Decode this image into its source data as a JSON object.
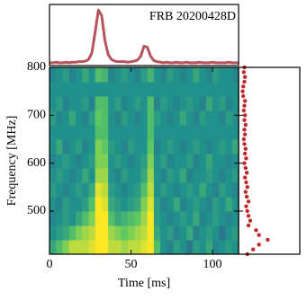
{
  "chart_data": [
    {
      "type": "heatmap",
      "x_label": "Time [ms]",
      "y_label": "Frequency [MHz]",
      "xlim": [
        0,
        116
      ],
      "ylim": [
        410,
        800
      ],
      "xticks": [
        0,
        50,
        100
      ],
      "yticks": [
        500,
        600,
        700,
        800
      ],
      "colormap": "viridis",
      "zlim": [
        0,
        1
      ],
      "z": [
        [
          0.6,
          0.7,
          0.8,
          0.9,
          0.9,
          0.9,
          0.95,
          1,
          1,
          0.9,
          0.9,
          0.85,
          0.9,
          0.9,
          0.95,
          1,
          0.7,
          0.5,
          0.45,
          0.55,
          0.5,
          0.4,
          0.55,
          0.5,
          0.6,
          0.45,
          0.5,
          0.55,
          0.5
        ],
        [
          0.5,
          0.55,
          0.6,
          0.7,
          0.8,
          0.85,
          0.9,
          1,
          1,
          0.85,
          0.8,
          0.75,
          0.8,
          0.85,
          0.9,
          1,
          0.6,
          0.5,
          0.55,
          0.45,
          0.5,
          0.6,
          0.45,
          0.5,
          0.55,
          0.5,
          0.4,
          0.5,
          0.55
        ],
        [
          0.45,
          0.5,
          0.55,
          0.5,
          0.6,
          0.7,
          0.8,
          1,
          1,
          0.7,
          0.6,
          0.65,
          0.7,
          0.75,
          0.85,
          1,
          0.55,
          0.5,
          0.45,
          0.5,
          0.55,
          0.5,
          0.6,
          0.45,
          0.5,
          0.55,
          0.5,
          0.45,
          0.5
        ],
        [
          0.5,
          0.45,
          0.55,
          0.5,
          0.5,
          0.55,
          0.7,
          1,
          0.95,
          0.6,
          0.55,
          0.5,
          0.55,
          0.6,
          0.8,
          0.95,
          0.55,
          0.45,
          0.5,
          0.6,
          0.45,
          0.5,
          0.55,
          0.5,
          0.45,
          0.55,
          0.5,
          0.6,
          0.5
        ],
        [
          0.55,
          0.5,
          0.45,
          0.5,
          0.55,
          0.5,
          0.6,
          0.95,
          0.9,
          0.55,
          0.5,
          0.45,
          0.5,
          0.55,
          0.7,
          0.9,
          0.5,
          0.55,
          0.5,
          0.45,
          0.5,
          0.55,
          0.5,
          0.6,
          0.5,
          0.45,
          0.55,
          0.5,
          0.45
        ],
        [
          0.5,
          0.55,
          0.5,
          0.45,
          0.5,
          0.6,
          0.5,
          0.85,
          0.85,
          0.5,
          0.45,
          0.55,
          0.5,
          0.5,
          0.6,
          0.85,
          0.5,
          0.45,
          0.55,
          0.5,
          0.6,
          0.45,
          0.5,
          0.5,
          0.55,
          0.5,
          0.45,
          0.5,
          0.55
        ],
        [
          0.45,
          0.5,
          0.55,
          0.5,
          0.45,
          0.5,
          0.55,
          0.8,
          0.8,
          0.5,
          0.55,
          0.5,
          0.45,
          0.5,
          0.55,
          0.8,
          0.5,
          0.55,
          0.45,
          0.5,
          0.5,
          0.55,
          0.45,
          0.5,
          0.6,
          0.5,
          0.5,
          0.45,
          0.5
        ],
        [
          0.5,
          0.6,
          0.45,
          0.5,
          0.55,
          0.45,
          0.5,
          0.8,
          0.75,
          0.55,
          0.5,
          0.45,
          0.55,
          0.5,
          0.5,
          0.75,
          0.45,
          0.5,
          0.55,
          0.5,
          0.45,
          0.5,
          0.55,
          0.5,
          0.45,
          0.5,
          0.55,
          0.5,
          0.6
        ],
        [
          0.5,
          0.5,
          0.5,
          0.5,
          0.5,
          0.5,
          0.5,
          0.7,
          0.7,
          0.5,
          0.5,
          0.5,
          0.5,
          0.5,
          0.5,
          0.7,
          0.5,
          0.5,
          0.5,
          0.5,
          0.5,
          0.5,
          0.5,
          0.5,
          0.5,
          0.5,
          0.5,
          0.5,
          0.5
        ],
        [
          0.55,
          0.45,
          0.5,
          0.6,
          0.5,
          0.45,
          0.55,
          0.75,
          0.7,
          0.5,
          0.45,
          0.55,
          0.5,
          0.45,
          0.5,
          0.7,
          0.55,
          0.5,
          0.45,
          0.5,
          0.6,
          0.5,
          0.45,
          0.55,
          0.5,
          0.5,
          0.45,
          0.55,
          0.5
        ],
        [
          0.5,
          0.55,
          0.45,
          0.5,
          0.5,
          0.55,
          0.45,
          0.7,
          0.7,
          0.5,
          0.55,
          0.45,
          0.5,
          0.55,
          0.5,
          0.7,
          0.45,
          0.55,
          0.5,
          0.45,
          0.5,
          0.55,
          0.5,
          0.45,
          0.6,
          0.5,
          0.55,
          0.45,
          0.5
        ],
        [
          0.5,
          0.5,
          0.5,
          0.5,
          0.5,
          0.5,
          0.5,
          0.5,
          0.5,
          0.5,
          0.5,
          0.5,
          0.5,
          0.5,
          0.5,
          0.5,
          0.5,
          0.5,
          0.5,
          0.5,
          0.5,
          0.5,
          0.5,
          0.5,
          0.5,
          0.5,
          0.5,
          0.5,
          0.5
        ],
        [
          0.45,
          0.5,
          0.55,
          0.45,
          0.5,
          0.6,
          0.5,
          0.7,
          0.65,
          0.45,
          0.5,
          0.55,
          0.5,
          0.45,
          0.55,
          0.65,
          0.5,
          0.45,
          0.55,
          0.5,
          0.45,
          0.5,
          0.6,
          0.5,
          0.45,
          0.55,
          0.5,
          0.5,
          0.45
        ]
      ]
    },
    {
      "type": "line",
      "title": "FRB 20200428D",
      "color": "#b5545c",
      "xlim": [
        0,
        116
      ],
      "ylim": [
        -0.05,
        1.05
      ],
      "x": [
        0,
        2,
        4,
        6,
        8,
        10,
        12,
        14,
        16,
        18,
        20,
        22,
        24,
        26,
        28,
        30,
        32,
        34,
        36,
        38,
        40,
        42,
        44,
        46,
        48,
        50,
        52,
        54,
        56,
        58,
        60,
        62,
        64,
        66,
        68,
        70,
        72,
        74,
        76,
        78,
        80,
        82,
        84,
        86,
        88,
        90,
        92,
        94,
        96,
        98,
        100,
        102,
        104,
        106,
        108,
        110,
        112,
        114,
        116
      ],
      "values": [
        0,
        0,
        0.01,
        0,
        0,
        0.01,
        0,
        0.01,
        0.01,
        0.02,
        0.02,
        0.03,
        0.06,
        0.18,
        0.55,
        0.95,
        0.85,
        0.4,
        0.15,
        0.06,
        0.03,
        0.02,
        0.02,
        0.02,
        0.01,
        0.02,
        0.03,
        0.05,
        0.12,
        0.3,
        0.28,
        0.12,
        0.04,
        0.02,
        0.01,
        0,
        0.01,
        0,
        0,
        0.01,
        0,
        0,
        0.01,
        0,
        0,
        0,
        0.01,
        0,
        0,
        0,
        0.01,
        0,
        0,
        0,
        0,
        0.01,
        0,
        0,
        0
      ]
    },
    {
      "type": "scatter",
      "color": "#c0282d",
      "xlim": [
        -0.05,
        1
      ],
      "ylim": [
        410,
        800
      ],
      "y": [
        410,
        420,
        430,
        440,
        450,
        460,
        470,
        480,
        490,
        500,
        510,
        520,
        530,
        540,
        550,
        560,
        570,
        580,
        590,
        600,
        610,
        620,
        630,
        640,
        650,
        660,
        670,
        680,
        690,
        700,
        710,
        720,
        730,
        740,
        750,
        760,
        770,
        780,
        790,
        800
      ],
      "x": [
        0.1,
        0.2,
        0.3,
        0.45,
        0.3,
        0.25,
        0.12,
        0.15,
        0.12,
        0.1,
        0.08,
        0.12,
        0.09,
        0.07,
        0.1,
        0.08,
        0.06,
        0.09,
        0.07,
        0.05,
        0.08,
        0.06,
        0.07,
        0.05,
        0.04,
        0.06,
        0.05,
        0.07,
        0.05,
        0.06,
        0.04,
        0.05,
        0.06,
        0.03,
        0.02,
        0.03,
        0.05,
        0.06,
        0.04,
        0.05
      ]
    }
  ]
}
